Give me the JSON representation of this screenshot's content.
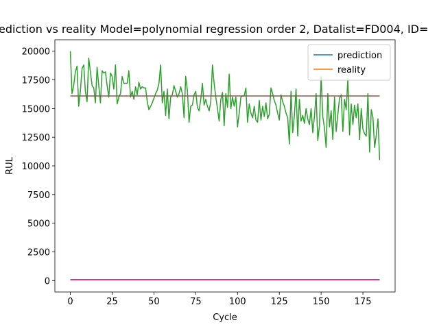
{
  "chart_data": {
    "type": "line",
    "title": "ediction vs reality Model=polynomial regression order 2, Datalist=FD004, ID=",
    "x_label": "Cycle",
    "y_label": "RUL",
    "xlim": [
      -9.25,
      194.25
    ],
    "ylim": [
      -1000,
      21000
    ],
    "xticks": [
      0,
      25,
      50,
      75,
      100,
      125,
      150,
      175
    ],
    "yticks": [
      0,
      2500,
      5000,
      7500,
      10000,
      12500,
      15000,
      17500,
      20000
    ],
    "legend": "upper right",
    "series": [
      {
        "name": "prediction",
        "color": "#1f77b4",
        "x": [
          0,
          185
        ],
        "values": [
          60,
          60
        ]
      },
      {
        "name": "reality",
        "color": "#ff7f0e",
        "x": [
          0,
          185
        ],
        "values": [
          50,
          50
        ]
      },
      {
        "color": "#2ca02c",
        "x": [
          0,
          1,
          2,
          3,
          4,
          5,
          6,
          7,
          8,
          9,
          10,
          11,
          12,
          13,
          14,
          15,
          16,
          17,
          18,
          19,
          20,
          21,
          22,
          23,
          24,
          25,
          26,
          27,
          28,
          29,
          30,
          31,
          32,
          33,
          34,
          35,
          36,
          37,
          38,
          39,
          40,
          41,
          42,
          43,
          44,
          45,
          46,
          47,
          48,
          49,
          50,
          51,
          52,
          53,
          54,
          55,
          56,
          57,
          58,
          59,
          60,
          61,
          62,
          63,
          64,
          65,
          66,
          67,
          68,
          69,
          70,
          71,
          72,
          73,
          74,
          75,
          76,
          77,
          78,
          79,
          80,
          81,
          82,
          83,
          84,
          85,
          86,
          87,
          88,
          89,
          90,
          91,
          92,
          93,
          94,
          95,
          96,
          97,
          98,
          99,
          100,
          101,
          102,
          103,
          104,
          105,
          106,
          107,
          108,
          109,
          110,
          111,
          112,
          113,
          114,
          115,
          116,
          117,
          118,
          119,
          120,
          121,
          122,
          123,
          124,
          125,
          126,
          127,
          128,
          129,
          130,
          131,
          132,
          133,
          134,
          135,
          136,
          137,
          138,
          139,
          140,
          141,
          142,
          143,
          144,
          145,
          146,
          147,
          148,
          149,
          150,
          151,
          152,
          153,
          154,
          155,
          156,
          157,
          158,
          159,
          160,
          161,
          162,
          163,
          164,
          165,
          166,
          167,
          168,
          169,
          170,
          171,
          172,
          173,
          174,
          175,
          176,
          177,
          178,
          179,
          180,
          181,
          182,
          183,
          184,
          185
        ],
        "values": [
          20000,
          16300,
          17000,
          18200,
          18700,
          15200,
          16500,
          18500,
          18800,
          16500,
          15600,
          19400,
          18200,
          17000,
          16800,
          15500,
          18600,
          17000,
          15500,
          18300,
          18100,
          18200,
          17000,
          16000,
          18100,
          17800,
          16700,
          18800,
          15400,
          16000,
          16300,
          17800,
          17200,
          17200,
          17200,
          18300,
          16000,
          16500,
          15800,
          16900,
          16200,
          17300,
          16700,
          16900,
          16800,
          16800,
          15600,
          14900,
          15200,
          15500,
          15900,
          16300,
          16600,
          17200,
          18800,
          15500,
          16500,
          14400,
          16700,
          14100,
          16000,
          16200,
          17000,
          16500,
          16000,
          16300,
          16900,
          16300,
          14200,
          17800,
          16600,
          13800,
          15200,
          15300,
          16200,
          16500,
          15100,
          14800,
          15800,
          17200,
          15300,
          15800,
          15200,
          14800,
          15600,
          18800,
          17200,
          16000,
          15000,
          13900,
          15800,
          16400,
          13500,
          16300,
          15100,
          18000,
          15000,
          16000,
          15200,
          16000,
          13400,
          14600,
          16000,
          16100,
          16100,
          16800,
          13800,
          15400,
          14600,
          14200,
          15200,
          14000,
          13800,
          15700,
          14000,
          15200,
          14300,
          15500,
          14100,
          14500,
          16800,
          16300,
          15700,
          15300,
          14600,
          14000,
          16200,
          15600,
          15200,
          14600,
          14200,
          11900,
          16500,
          12900,
          14400,
          16700,
          12600,
          15800,
          13900,
          14400,
          13700,
          15000,
          14100,
          13600,
          15000,
          12900,
          14300,
          16300,
          12200,
          13500,
          17800,
          14300,
          13300,
          11600,
          16300,
          13400,
          14800,
          12300,
          16000,
          13000,
          14500,
          15900,
          16200,
          13000,
          15800,
          14900,
          17600,
          12700,
          15400,
          13600,
          15300,
          14200,
          15400,
          12300,
          15000,
          13200,
          12800,
          12600,
          16300,
          11200,
          14900,
          14200,
          11600,
          12700,
          14100,
          10500
        ]
      },
      {
        "color": "#d62728",
        "x": [
          0,
          185
        ],
        "values": [
          90,
          90
        ]
      },
      {
        "color": "#8c564b",
        "x": [
          0,
          185
        ],
        "values": [
          16100,
          16100
        ]
      },
      {
        "color": "#e377c2",
        "x": [
          0,
          185
        ],
        "values": [
          30,
          30
        ]
      }
    ]
  }
}
